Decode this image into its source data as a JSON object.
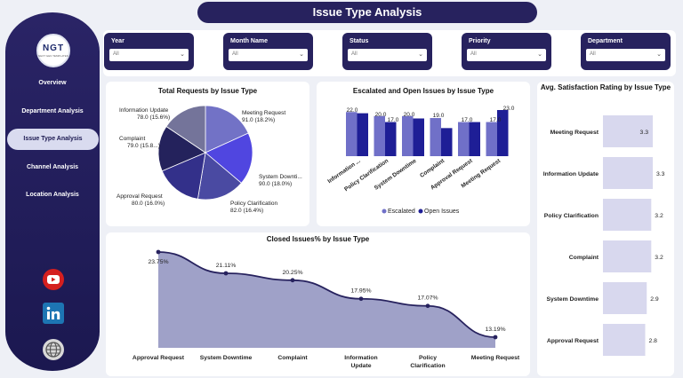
{
  "header": {
    "title": "Issue Type Analysis"
  },
  "logo": {
    "title": "NGT",
    "subtitle": "NEXT GEN TEMPLATES"
  },
  "sidebar": {
    "items": [
      {
        "label": "Overview"
      },
      {
        "label": "Department Analysis"
      },
      {
        "label": "Issue Type Analysis",
        "active": true
      },
      {
        "label": "Channel Analysis"
      },
      {
        "label": "Location Analysis"
      }
    ],
    "social": [
      "youtube-icon",
      "linkedin-icon",
      "globe-icon"
    ]
  },
  "filters": [
    {
      "label": "Year",
      "value": "All"
    },
    {
      "label": "Month Name",
      "value": "All"
    },
    {
      "label": "Status",
      "value": "All"
    },
    {
      "label": "Priority",
      "value": "All"
    },
    {
      "label": "Department",
      "value": "All"
    }
  ],
  "colors": {
    "navy": "#27225e",
    "sidebar": "#1b1850",
    "escalated": "#7070c8",
    "open": "#1e1e96",
    "area": "#9fa1c8",
    "bar": "#d8d8ee"
  },
  "chart_data": [
    {
      "type": "pie",
      "title": "Total Requests by Issue Type",
      "slices": [
        {
          "label": "Meeting Request",
          "value": 91.0,
          "pct": "18.2%",
          "text": "91.0 (18.2%)",
          "color": "#7272c6"
        },
        {
          "label": "System Downti...",
          "value": 90.0,
          "pct": "18.0%",
          "text": "90.0 (18.0%)",
          "color": "#5046e0"
        },
        {
          "label": "Policy Clarification",
          "value": 82.0,
          "pct": "16.4%",
          "text": "82.0 (16.4%)",
          "color": "#4a4aa2"
        },
        {
          "label": "Approval Request",
          "value": 80.0,
          "pct": "16.0%",
          "text": "80.0 (16.0%)",
          "color": "#33308a"
        },
        {
          "label": "Complaint",
          "value": 79.0,
          "pct": "15.8...",
          "text": "79.0 (15.8...)",
          "color": "#24225c"
        },
        {
          "label": "Information Update",
          "value": 78.0,
          "pct": "15.6%",
          "text": "78.0 (15.6%)",
          "color": "#74749a"
        }
      ]
    },
    {
      "type": "bar",
      "title": "Escalated and Open Issues by Issue Type",
      "categories": [
        "Information ...",
        "Policy Clarification",
        "System Downtime",
        "Complaint",
        "Approval Request",
        "Meeting Request"
      ],
      "series": [
        {
          "name": "Escalated",
          "values": [
            22.0,
            20.0,
            20.0,
            19.0,
            17.0,
            17.0
          ]
        },
        {
          "name": "Open Issues",
          "values": [
            21.4,
            17.0,
            18.8,
            14.0,
            17.0,
            23.0
          ]
        }
      ],
      "labels": [
        "22.0",
        "20.0",
        "17.0",
        "20.0",
        "19.0",
        "17.0",
        "17.0",
        "23.0"
      ],
      "legend": "bottom"
    },
    {
      "type": "bar",
      "orientation": "horizontal",
      "title": "Avg. Satisfaction Rating by Issue Type",
      "categories": [
        "Meeting Request",
        "Information Update",
        "Policy Clarification",
        "Complaint",
        "System Downtime",
        "Approval Request"
      ],
      "values": [
        3.3,
        3.3,
        3.2,
        3.2,
        2.9,
        2.8
      ],
      "labels": [
        "3.3",
        "3.3",
        "3.2",
        "3.2",
        "2.9",
        "2.8"
      ]
    },
    {
      "type": "area",
      "title": "Closed Issues% by Issue Type",
      "categories": [
        "Approval Request",
        "System Downtime",
        "Complaint",
        "Information Update",
        "Policy Clarification",
        "Meeting Request"
      ],
      "values": [
        23.75,
        21.11,
        20.25,
        17.95,
        17.07,
        13.19
      ],
      "labels": [
        "23.75%",
        "21.11%",
        "20.25%",
        "17.95%",
        "17.07%",
        "13.19%"
      ]
    }
  ]
}
